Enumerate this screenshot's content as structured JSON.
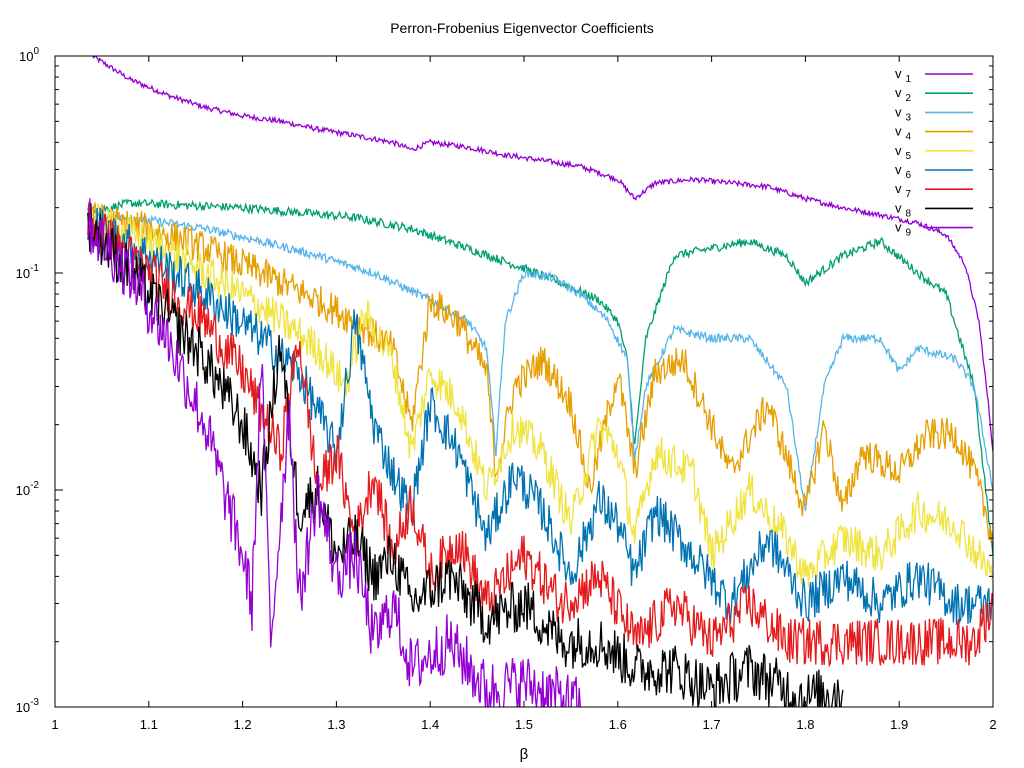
{
  "chart_data": {
    "type": "line",
    "title": "Perron-Frobenius Eigenvector Coefficients",
    "xlabel": "β",
    "ylabel": "",
    "xlim": [
      1,
      2
    ],
    "ylim": [
      0.001,
      1
    ],
    "yscale": "log",
    "grid": false,
    "legend_position": "top-right",
    "x_ticks": [
      1,
      1.1,
      1.2,
      1.3,
      1.4,
      1.5,
      1.6,
      1.7,
      1.8,
      1.9,
      2
    ],
    "x_tick_labels": [
      "1",
      "1.1",
      "1.2",
      "1.3",
      "1.4",
      "1.5",
      "1.6",
      "1.7",
      "1.8",
      "1.9",
      "2"
    ],
    "y_ticks": [
      {
        "base": "10",
        "exp": "-3",
        "value": 0.001
      },
      {
        "base": "10",
        "exp": "-2",
        "value": 0.01
      },
      {
        "base": "10",
        "exp": "-1",
        "value": 0.1
      },
      {
        "base": "10",
        "exp": "0",
        "value": 1
      }
    ],
    "series": [
      {
        "name": "v",
        "sub": "1",
        "color": "#9400d3",
        "points": [
          [
            1.04,
            1.0
          ],
          [
            1.08,
            0.78
          ],
          [
            1.12,
            0.66
          ],
          [
            1.16,
            0.58
          ],
          [
            1.2,
            0.53
          ],
          [
            1.24,
            0.5
          ],
          [
            1.28,
            0.46
          ],
          [
            1.32,
            0.43
          ],
          [
            1.36,
            0.4
          ],
          [
            1.38,
            0.37
          ],
          [
            1.4,
            0.4
          ],
          [
            1.44,
            0.38
          ],
          [
            1.48,
            0.35
          ],
          [
            1.52,
            0.33
          ],
          [
            1.56,
            0.31
          ],
          [
            1.6,
            0.27
          ],
          [
            1.618,
            0.22
          ],
          [
            1.64,
            0.26
          ],
          [
            1.68,
            0.27
          ],
          [
            1.72,
            0.26
          ],
          [
            1.76,
            0.25
          ],
          [
            1.8,
            0.22
          ],
          [
            1.84,
            0.2
          ],
          [
            1.88,
            0.185
          ],
          [
            1.92,
            0.17
          ],
          [
            1.95,
            0.15
          ],
          [
            1.97,
            0.11
          ],
          [
            1.985,
            0.06
          ],
          [
            1.995,
            0.025
          ],
          [
            2.0,
            0.015
          ]
        ]
      },
      {
        "name": "v",
        "sub": "2",
        "color": "#009e73",
        "points": [
          [
            1.035,
            0.19
          ],
          [
            1.08,
            0.21
          ],
          [
            1.14,
            0.205
          ],
          [
            1.2,
            0.2
          ],
          [
            1.26,
            0.19
          ],
          [
            1.32,
            0.18
          ],
          [
            1.38,
            0.16
          ],
          [
            1.44,
            0.13
          ],
          [
            1.5,
            0.105
          ],
          [
            1.54,
            0.09
          ],
          [
            1.58,
            0.075
          ],
          [
            1.6,
            0.06
          ],
          [
            1.61,
            0.04
          ],
          [
            1.618,
            0.016
          ],
          [
            1.63,
            0.05
          ],
          [
            1.66,
            0.12
          ],
          [
            1.7,
            0.13
          ],
          [
            1.74,
            0.14
          ],
          [
            1.78,
            0.12
          ],
          [
            1.8,
            0.09
          ],
          [
            1.84,
            0.12
          ],
          [
            1.88,
            0.14
          ],
          [
            1.92,
            0.1
          ],
          [
            1.95,
            0.08
          ],
          [
            1.98,
            0.03
          ],
          [
            2.0,
            0.005
          ]
        ]
      },
      {
        "name": "v",
        "sub": "3",
        "color": "#56b4e9",
        "points": [
          [
            1.035,
            0.185
          ],
          [
            1.1,
            0.175
          ],
          [
            1.16,
            0.16
          ],
          [
            1.22,
            0.14
          ],
          [
            1.28,
            0.12
          ],
          [
            1.34,
            0.1
          ],
          [
            1.4,
            0.075
          ],
          [
            1.44,
            0.06
          ],
          [
            1.46,
            0.045
          ],
          [
            1.47,
            0.015
          ],
          [
            1.48,
            0.06
          ],
          [
            1.5,
            0.1
          ],
          [
            1.53,
            0.095
          ],
          [
            1.56,
            0.08
          ],
          [
            1.59,
            0.06
          ],
          [
            1.61,
            0.04
          ],
          [
            1.618,
            0.014
          ],
          [
            1.63,
            0.03
          ],
          [
            1.66,
            0.055
          ],
          [
            1.7,
            0.05
          ],
          [
            1.74,
            0.05
          ],
          [
            1.78,
            0.03
          ],
          [
            1.8,
            0.008
          ],
          [
            1.82,
            0.03
          ],
          [
            1.84,
            0.05
          ],
          [
            1.88,
            0.05
          ],
          [
            1.9,
            0.035
          ],
          [
            1.92,
            0.045
          ],
          [
            1.96,
            0.04
          ],
          [
            1.98,
            0.03
          ],
          [
            2.0,
            0.01
          ]
        ]
      },
      {
        "name": "v",
        "sub": "4",
        "color": "#e69f00",
        "points": [
          [
            1.035,
            0.18
          ],
          [
            1.1,
            0.16
          ],
          [
            1.16,
            0.13
          ],
          [
            1.22,
            0.1
          ],
          [
            1.28,
            0.075
          ],
          [
            1.32,
            0.06
          ],
          [
            1.36,
            0.045
          ],
          [
            1.38,
            0.02
          ],
          [
            1.4,
            0.075
          ],
          [
            1.43,
            0.06
          ],
          [
            1.46,
            0.035
          ],
          [
            1.47,
            0.012
          ],
          [
            1.49,
            0.03
          ],
          [
            1.52,
            0.04
          ],
          [
            1.55,
            0.025
          ],
          [
            1.57,
            0.01
          ],
          [
            1.6,
            0.035
          ],
          [
            1.618,
            0.012
          ],
          [
            1.64,
            0.035
          ],
          [
            1.67,
            0.04
          ],
          [
            1.7,
            0.02
          ],
          [
            1.72,
            0.012
          ],
          [
            1.76,
            0.025
          ],
          [
            1.8,
            0.008
          ],
          [
            1.82,
            0.02
          ],
          [
            1.84,
            0.008
          ],
          [
            1.86,
            0.015
          ],
          [
            1.9,
            0.012
          ],
          [
            1.93,
            0.018
          ],
          [
            1.96,
            0.018
          ],
          [
            1.98,
            0.012
          ],
          [
            2.0,
            0.006
          ]
        ]
      },
      {
        "name": "v",
        "sub": "5",
        "color": "#f0e442",
        "points": [
          [
            1.035,
            0.178
          ],
          [
            1.1,
            0.14
          ],
          [
            1.16,
            0.1
          ],
          [
            1.22,
            0.07
          ],
          [
            1.28,
            0.045
          ],
          [
            1.31,
            0.03
          ],
          [
            1.33,
            0.065
          ],
          [
            1.36,
            0.04
          ],
          [
            1.38,
            0.015
          ],
          [
            1.4,
            0.035
          ],
          [
            1.43,
            0.025
          ],
          [
            1.46,
            0.01
          ],
          [
            1.49,
            0.02
          ],
          [
            1.52,
            0.015
          ],
          [
            1.55,
            0.007
          ],
          [
            1.58,
            0.02
          ],
          [
            1.6,
            0.015
          ],
          [
            1.618,
            0.006
          ],
          [
            1.64,
            0.015
          ],
          [
            1.68,
            0.012
          ],
          [
            1.7,
            0.005
          ],
          [
            1.74,
            0.01
          ],
          [
            1.78,
            0.006
          ],
          [
            1.8,
            0.004
          ],
          [
            1.84,
            0.006
          ],
          [
            1.88,
            0.005
          ],
          [
            1.92,
            0.008
          ],
          [
            1.96,
            0.007
          ],
          [
            2.0,
            0.004
          ]
        ]
      },
      {
        "name": "v",
        "sub": "6",
        "color": "#0072b2",
        "points": [
          [
            1.035,
            0.175
          ],
          [
            1.1,
            0.12
          ],
          [
            1.16,
            0.08
          ],
          [
            1.22,
            0.05
          ],
          [
            1.26,
            0.035
          ],
          [
            1.3,
            0.015
          ],
          [
            1.32,
            0.06
          ],
          [
            1.34,
            0.02
          ],
          [
            1.36,
            0.012
          ],
          [
            1.38,
            0.008
          ],
          [
            1.4,
            0.025
          ],
          [
            1.43,
            0.015
          ],
          [
            1.46,
            0.006
          ],
          [
            1.49,
            0.012
          ],
          [
            1.52,
            0.008
          ],
          [
            1.55,
            0.004
          ],
          [
            1.58,
            0.009
          ],
          [
            1.6,
            0.007
          ],
          [
            1.618,
            0.004
          ],
          [
            1.64,
            0.008
          ],
          [
            1.68,
            0.005
          ],
          [
            1.72,
            0.003
          ],
          [
            1.76,
            0.006
          ],
          [
            1.8,
            0.003
          ],
          [
            1.84,
            0.004
          ],
          [
            1.88,
            0.003
          ],
          [
            1.92,
            0.004
          ],
          [
            1.96,
            0.003
          ],
          [
            2.0,
            0.003
          ]
        ]
      },
      {
        "name": "v",
        "sub": "7",
        "color": "#e41a1c",
        "points": [
          [
            1.035,
            0.173
          ],
          [
            1.1,
            0.1
          ],
          [
            1.16,
            0.06
          ],
          [
            1.2,
            0.035
          ],
          [
            1.24,
            0.015
          ],
          [
            1.26,
            0.05
          ],
          [
            1.28,
            0.01
          ],
          [
            1.3,
            0.015
          ],
          [
            1.32,
            0.006
          ],
          [
            1.34,
            0.012
          ],
          [
            1.36,
            0.005
          ],
          [
            1.38,
            0.009
          ],
          [
            1.4,
            0.004
          ],
          [
            1.43,
            0.006
          ],
          [
            1.46,
            0.003
          ],
          [
            1.5,
            0.005
          ],
          [
            1.54,
            0.003
          ],
          [
            1.58,
            0.004
          ],
          [
            1.62,
            0.002
          ],
          [
            1.66,
            0.003
          ],
          [
            1.7,
            0.002
          ],
          [
            1.74,
            0.003
          ],
          [
            1.78,
            0.002
          ],
          [
            1.82,
            0.002
          ],
          [
            1.86,
            0.002
          ],
          [
            1.9,
            0.002
          ],
          [
            1.94,
            0.002
          ],
          [
            1.98,
            0.002
          ],
          [
            2.0,
            0.003
          ]
        ]
      },
      {
        "name": "v",
        "sub": "8",
        "color": "#000000",
        "points": [
          [
            1.035,
            0.17
          ],
          [
            1.1,
            0.08
          ],
          [
            1.16,
            0.04
          ],
          [
            1.2,
            0.02
          ],
          [
            1.22,
            0.01
          ],
          [
            1.24,
            0.048
          ],
          [
            1.26,
            0.008
          ],
          [
            1.28,
            0.01
          ],
          [
            1.3,
            0.005
          ],
          [
            1.32,
            0.006
          ],
          [
            1.34,
            0.004
          ],
          [
            1.36,
            0.005
          ],
          [
            1.38,
            0.003
          ],
          [
            1.42,
            0.004
          ],
          [
            1.46,
            0.0025
          ],
          [
            1.5,
            0.003
          ],
          [
            1.54,
            0.002
          ],
          [
            1.58,
            0.002
          ],
          [
            1.62,
            0.0015
          ],
          [
            1.66,
            0.0015
          ],
          [
            1.7,
            0.0012
          ],
          [
            1.74,
            0.0015
          ],
          [
            1.78,
            0.0012
          ],
          [
            1.8,
            0.0011
          ],
          [
            1.84,
            0.0012
          ]
        ]
      },
      {
        "name": "v",
        "sub": "9",
        "color": "#9400d3",
        "points": [
          [
            1.035,
            0.168
          ],
          [
            1.08,
            0.1
          ],
          [
            1.12,
            0.05
          ],
          [
            1.16,
            0.02
          ],
          [
            1.18,
            0.01
          ],
          [
            1.2,
            0.005
          ],
          [
            1.21,
            0.003
          ],
          [
            1.22,
            0.04
          ],
          [
            1.23,
            0.002
          ],
          [
            1.25,
            0.025
          ],
          [
            1.26,
            0.003
          ],
          [
            1.28,
            0.01
          ],
          [
            1.3,
            0.004
          ],
          [
            1.32,
            0.005
          ],
          [
            1.34,
            0.002
          ],
          [
            1.36,
            0.003
          ],
          [
            1.38,
            0.0015
          ],
          [
            1.42,
            0.002
          ],
          [
            1.46,
            0.0012
          ],
          [
            1.5,
            0.0013
          ],
          [
            1.54,
            0.0011
          ],
          [
            1.56,
            0.001
          ]
        ]
      }
    ]
  }
}
